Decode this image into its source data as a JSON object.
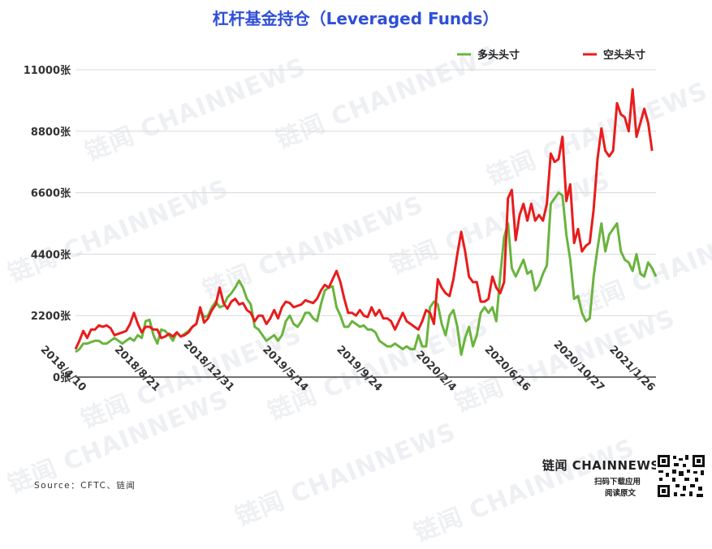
{
  "watermark_text": "链闻 CHAINNEWS",
  "brand": {
    "name": "链闻 CHAINNEWS",
    "line1": "扫码下载应用",
    "line2": "阅读原文"
  },
  "source": "Source：CFTC、链闻",
  "chart_data": {
    "type": "line",
    "title": "杠杆基金持仓（Leveraged Funds）",
    "title_color": "#2f4fd6",
    "ylim": [
      0,
      11000
    ],
    "yticks": [
      "0张",
      "2200张",
      "4400张",
      "6600张",
      "8800张",
      "11000张"
    ],
    "ytick_values": [
      0,
      2200,
      4400,
      6600,
      8800,
      11000
    ],
    "xtick_labels": [
      "2018/4/10",
      "2018/8/21",
      "2018/12/31",
      "2019/5/14",
      "2019/9/24",
      "2020/2/4",
      "2020/6/16",
      "2020/10/27",
      "2021/1/26"
    ],
    "xtick_index": [
      0,
      19,
      38,
      57,
      76,
      95,
      114,
      133,
      146
    ],
    "grid": "horizontal",
    "legend": "top-right",
    "series": [
      {
        "name": "多头头寸",
        "color": "#6ab43e",
        "values": [
          900,
          1000,
          1200,
          1200,
          1250,
          1300,
          1300,
          1200,
          1200,
          1300,
          1400,
          1300,
          1200,
          1300,
          1400,
          1300,
          1500,
          1400,
          2000,
          2050,
          1500,
          1200,
          1700,
          1650,
          1500,
          1300,
          1600,
          1450,
          1550,
          1650,
          1800,
          1900,
          2400,
          2150,
          2200,
          2500,
          2700,
          2500,
          2550,
          2850,
          3000,
          3200,
          3450,
          3200,
          2800,
          2600,
          1800,
          1700,
          1500,
          1300,
          1400,
          1500,
          1300,
          1500,
          2000,
          2200,
          1900,
          1800,
          2000,
          2300,
          2300,
          2100,
          2000,
          2600,
          3100,
          3200,
          3250,
          2500,
          2200,
          1800,
          1800,
          2000,
          1900,
          1800,
          1850,
          1700,
          1700,
          1600,
          1300,
          1200,
          1100,
          1100,
          1200,
          1100,
          1000,
          1100,
          1000,
          1000,
          1500,
          1100,
          1100,
          2500,
          2700,
          2600,
          1900,
          1500,
          2200,
          2400,
          1800,
          800,
          1400,
          1800,
          1100,
          1500,
          2300,
          2500,
          2300,
          2500,
          2000,
          3600,
          5000,
          5500,
          3900,
          3600,
          3900,
          4200,
          3700,
          3800,
          3100,
          3300,
          3700,
          4000,
          6200,
          6400,
          6600,
          6500,
          5100,
          4200,
          2800,
          2900,
          2300,
          2000,
          2100,
          3600,
          4600,
          5500,
          4500,
          5100,
          5300,
          5500,
          4500,
          4200,
          4100,
          3800,
          4400,
          3700,
          3600,
          4100,
          3900,
          3600
        ]
      },
      {
        "name": "空头头寸",
        "color": "#e81c1c",
        "values": [
          1000,
          1300,
          1650,
          1400,
          1700,
          1700,
          1850,
          1800,
          1850,
          1750,
          1500,
          1550,
          1600,
          1650,
          1900,
          2300,
          1900,
          1600,
          1800,
          1800,
          1700,
          1700,
          1400,
          1450,
          1550,
          1450,
          1600,
          1450,
          1500,
          1600,
          1800,
          1900,
          2500,
          1950,
          2100,
          2400,
          2600,
          3200,
          2650,
          2450,
          2700,
          2800,
          2600,
          2650,
          2400,
          2300,
          2000,
          2200,
          2200,
          1900,
          2100,
          2400,
          2100,
          2500,
          2700,
          2650,
          2500,
          2550,
          2600,
          2750,
          2700,
          2650,
          2800,
          3100,
          3300,
          3200,
          3500,
          3800,
          3400,
          2800,
          2300,
          2300,
          2200,
          2400,
          2200,
          2150,
          2500,
          2200,
          2400,
          2100,
          2100,
          2000,
          1700,
          2000,
          2300,
          2000,
          1900,
          1800,
          1700,
          2000,
          2400,
          2300,
          1900,
          3500,
          3200,
          3000,
          2900,
          3500,
          4400,
          5200,
          4500,
          3600,
          3400,
          3400,
          2700,
          2700,
          2800,
          3600,
          3200,
          3000,
          3400,
          6400,
          6700,
          4900,
          5800,
          6200,
          5600,
          6200,
          5600,
          5800,
          5600,
          6200,
          8000,
          7700,
          7800,
          8600,
          6300,
          6900,
          4800,
          5300,
          4500,
          4700,
          4800,
          6000,
          7800,
          8900,
          8100,
          7900,
          8100,
          9800,
          9400,
          9300,
          8800,
          10300,
          8600,
          9100,
          9600,
          9100,
          8100
        ]
      }
    ]
  }
}
